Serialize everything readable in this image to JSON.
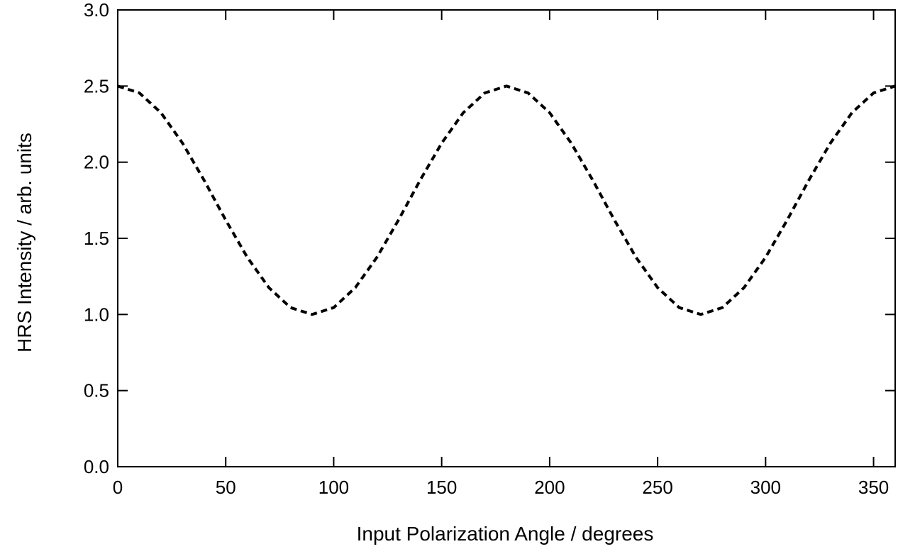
{
  "chart_data": {
    "type": "line",
    "title": "",
    "xlabel": "Input Polarization Angle  / degrees",
    "ylabel": "HRS Intensity  / arb. units",
    "xlim": [
      0,
      360
    ],
    "ylim": [
      0,
      3
    ],
    "xticks": [
      "0",
      "50",
      "100",
      "150",
      "200",
      "250",
      "300",
      "350"
    ],
    "yticks": [
      "0.0",
      "0.5",
      "1.0",
      "1.5",
      "2.0",
      "2.5",
      "3.0"
    ],
    "grid": false,
    "legend": "none",
    "line_style": "dashed",
    "line_color": "#000000",
    "series": [
      {
        "x": [
          0,
          10,
          20,
          30,
          40,
          50,
          60,
          70,
          80,
          90,
          100,
          110,
          120,
          130,
          140,
          150,
          160,
          170,
          180,
          190,
          200,
          210,
          220,
          230,
          240,
          250,
          260,
          270,
          280,
          290,
          300,
          310,
          320,
          330,
          340,
          350,
          360
        ],
        "values": [
          2.5,
          2.455,
          2.325,
          2.125,
          1.881,
          1.62,
          1.375,
          1.176,
          1.045,
          1.0,
          1.045,
          1.176,
          1.375,
          1.62,
          1.881,
          2.125,
          2.325,
          2.455,
          2.5,
          2.455,
          2.325,
          2.125,
          1.881,
          1.62,
          1.375,
          1.176,
          1.045,
          1.0,
          1.045,
          1.176,
          1.375,
          1.62,
          1.881,
          2.125,
          2.325,
          2.455,
          2.5
        ]
      }
    ]
  }
}
